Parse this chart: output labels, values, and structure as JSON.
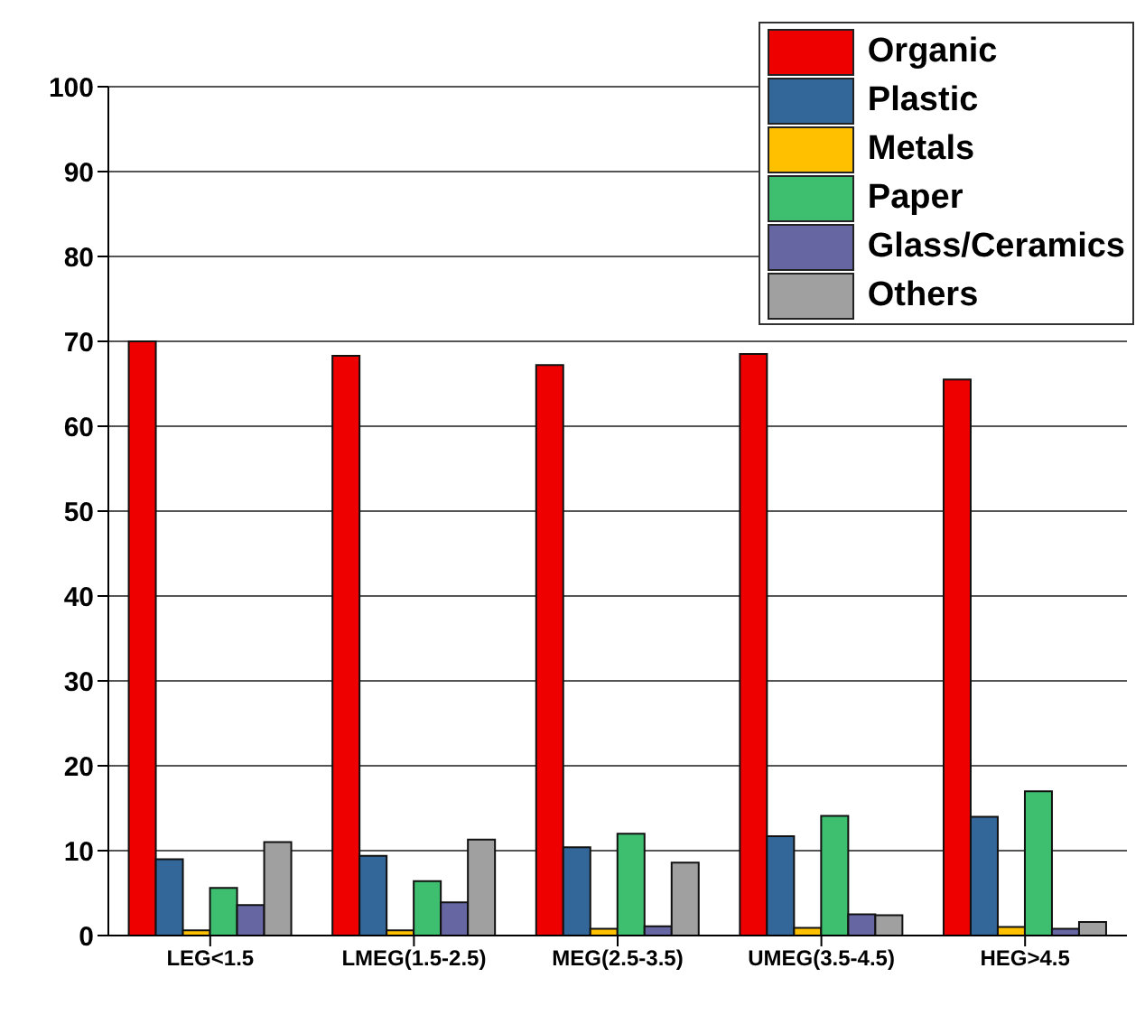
{
  "chart_data": {
    "type": "bar",
    "categories": [
      "LEG<1.5",
      "LMEG(1.5-2.5)",
      "MEG(2.5-3.5)",
      "UMEG(3.5-4.5)",
      "HEG>4.5"
    ],
    "series": [
      {
        "name": "Organic",
        "color": "#ee0000",
        "values": [
          70,
          68.3,
          67.2,
          68.5,
          65.5
        ]
      },
      {
        "name": "Plastic",
        "color": "#336699",
        "values": [
          9,
          9.4,
          10.4,
          11.7,
          14
        ]
      },
      {
        "name": "Metals",
        "color": "#ffc000",
        "values": [
          0.6,
          0.6,
          0.8,
          0.9,
          1
        ]
      },
      {
        "name": "Paper",
        "color": "#3dbf6f",
        "values": [
          5.6,
          6.4,
          12,
          14.1,
          17
        ]
      },
      {
        "name": "Glass/Ceramics",
        "color": "#6666a3",
        "values": [
          3.6,
          3.9,
          1.1,
          2.5,
          0.8
        ]
      },
      {
        "name": "Others",
        "color": "#a0a0a0",
        "values": [
          11,
          11.3,
          8.6,
          2.4,
          1.6
        ]
      }
    ],
    "ylim": [
      0,
      100
    ],
    "yticks": [
      0,
      10,
      20,
      30,
      40,
      50,
      60,
      70,
      80,
      90,
      100
    ],
    "grid": "y",
    "legend": "top right"
  }
}
